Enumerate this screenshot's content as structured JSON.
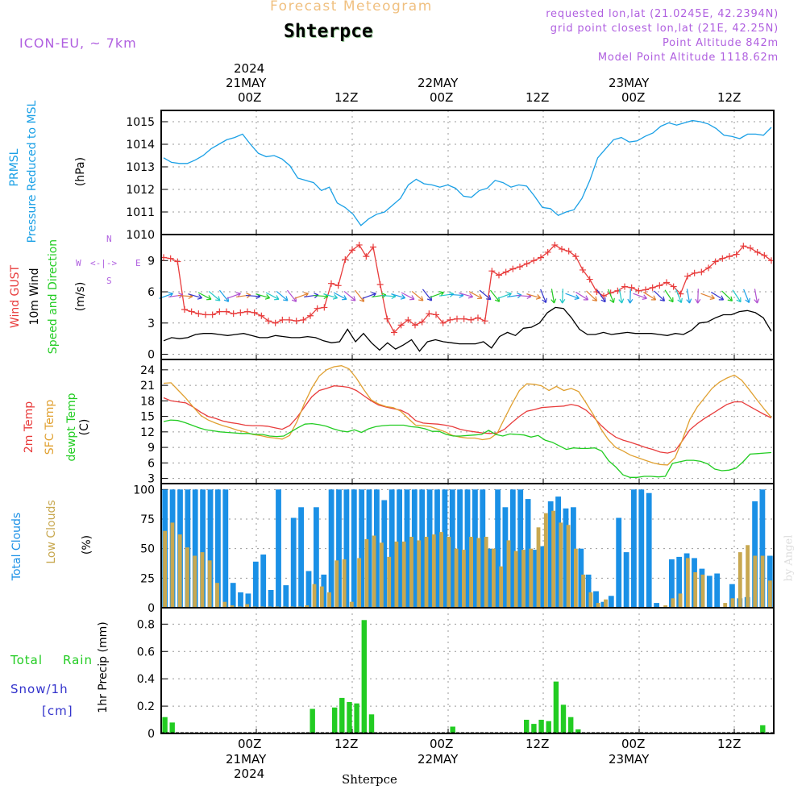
{
  "header": {
    "banner": "Forecast Meteogram",
    "location": "Shterpce",
    "model": "ICON-EU, ~ 7km",
    "requested": "requested lon,lat (21.0245E, 42.2394N)",
    "gridpoint": "grid point closest lon,lat (21E, 42.25N)",
    "point_alt": "Point Altitude 842m",
    "model_alt": "Model Point Altitude 1118.62m",
    "credit": "by Angel",
    "bottom_location": "Shterpce"
  },
  "time_axis": {
    "top_year": "2024",
    "top_days": [
      "21MAY",
      "22MAY",
      "23MAY"
    ],
    "hours": [
      "00Z",
      "12Z",
      "00Z",
      "12Z",
      "00Z",
      "12Z"
    ],
    "bottom_days": [
      "21MAY",
      "22MAY",
      "23MAY"
    ],
    "bottom_year": "2024"
  },
  "panels": {
    "pressure": {
      "label1": "PRMSL",
      "label2": "Pressure Reduced to MSL",
      "unit": "(hPa)"
    },
    "wind": {
      "label1": "Wind GUST",
      "label2": "10m Wind",
      "label3": "Speed and Direction",
      "unit": "(m/s)",
      "compass": "N",
      "compass_s": "S",
      "compass_w": "W",
      "compass_e": "E"
    },
    "temp": {
      "label1": "2m Temp",
      "label2": "SFC Temp",
      "label3": "dewpt Temp",
      "unit": "(C)"
    },
    "cloud": {
      "label1": "Total Clouds",
      "label2": "Low Clouds",
      "unit": "(%)"
    },
    "precip": {
      "label1": "Total",
      "label2": "Rain",
      "label3": "Snow/1h",
      "label4": "[cm]",
      "axis": "1hr Precip (mm)"
    }
  },
  "colors": {
    "pressure": "#1aa0e6",
    "gust": "#e83c3c",
    "wind": "#000000",
    "t2m": "#e83c3c",
    "tsfc": "#e0a030",
    "dewpt": "#22cc22",
    "total_clouds": "#1a90e6",
    "low_clouds": "#c8a850",
    "rain": "#22cc22",
    "snow": "#3333cc",
    "title_purple": "#b060e0",
    "banner": "#f0c080"
  },
  "chart_data": [
    {
      "type": "line",
      "panel": "pressure",
      "x_hours_from": "2024-05-20 18Z",
      "ylim": [
        1010,
        1015.5
      ],
      "yticks": [
        1010,
        1011,
        1012,
        1013,
        1014,
        1015
      ],
      "series": [
        {
          "name": "PRMSL",
          "values": [
            1013.4,
            1013.2,
            1013.15,
            1013.15,
            1013.3,
            1013.5,
            1013.8,
            1014.0,
            1014.2,
            1014.3,
            1014.45,
            1014.0,
            1013.6,
            1013.45,
            1013.5,
            1013.35,
            1013.05,
            1012.5,
            1012.4,
            1012.3,
            1011.95,
            1012.1,
            1011.4,
            1011.2,
            1010.9,
            1010.4,
            1010.7,
            1010.9,
            1011.0,
            1011.3,
            1011.6,
            1012.2,
            1012.45,
            1012.25,
            1012.2,
            1012.1,
            1012.2,
            1012.05,
            1011.7,
            1011.65,
            1011.95,
            1012.05,
            1012.4,
            1012.3,
            1012.1,
            1012.2,
            1012.15,
            1011.7,
            1011.2,
            1011.15,
            1010.85,
            1011.0,
            1011.1,
            1011.6,
            1012.4,
            1013.4,
            1013.8,
            1014.2,
            1014.3,
            1014.1,
            1014.15,
            1014.35,
            1014.5,
            1014.8,
            1014.95,
            1014.85,
            1014.95,
            1015.05,
            1015.0,
            1014.9,
            1014.7,
            1014.4,
            1014.35,
            1014.25,
            1014.45,
            1014.45,
            1014.4,
            1014.75
          ]
        }
      ]
    },
    {
      "type": "line",
      "panel": "wind",
      "ylim": [
        -0.5,
        11.5
      ],
      "yticks": [
        0,
        3,
        6,
        9
      ],
      "series": [
        {
          "name": "Wind GUST",
          "values": [
            9.3,
            9.2,
            8.9,
            4.3,
            4.1,
            3.9,
            3.8,
            3.8,
            4.1,
            4.1,
            3.9,
            4.0,
            4.1,
            4.0,
            3.7,
            3.2,
            3.0,
            3.3,
            3.3,
            3.2,
            3.3,
            3.7,
            4.4,
            4.5,
            6.8,
            6.6,
            9.1,
            10.0,
            10.5,
            9.4,
            10.3,
            6.7,
            3.4,
            2.1,
            2.8,
            3.3,
            2.8,
            3.1,
            3.9,
            3.8,
            3.0,
            3.3,
            3.4,
            3.4,
            3.3,
            3.5,
            3.2,
            8.0,
            7.6,
            7.9,
            8.2,
            8.4,
            8.7,
            9.0,
            9.3,
            9.8,
            10.5,
            10.1,
            9.9,
            9.4,
            8.1,
            7.2,
            6.0,
            5.6,
            5.9,
            6.1,
            6.5,
            6.4,
            6.1,
            6.2,
            6.4,
            6.6,
            6.9,
            6.5,
            5.8,
            7.5,
            7.8,
            7.9,
            8.3,
            8.9,
            9.2,
            9.4,
            9.6,
            10.4,
            10.2,
            9.8,
            9.5,
            9.0
          ]
        },
        {
          "name": "10m Wind",
          "values": [
            1.3,
            1.6,
            1.5,
            1.6,
            1.9,
            2.0,
            2.0,
            1.9,
            1.8,
            1.9,
            2.0,
            1.8,
            1.6,
            1.6,
            1.8,
            1.7,
            1.6,
            1.6,
            1.7,
            1.6,
            1.3,
            1.1,
            1.2,
            2.4,
            1.2,
            2.0,
            1.1,
            0.4,
            1.1,
            0.5,
            0.9,
            1.4,
            0.3,
            1.2,
            1.4,
            1.2,
            1.1,
            1.0,
            1.0,
            1.0,
            1.2,
            0.6,
            1.7,
            2.1,
            1.8,
            2.5,
            2.6,
            3.0,
            4.0,
            4.5,
            4.4,
            3.5,
            2.4,
            1.9,
            1.9,
            2.1,
            1.9,
            2.0,
            2.1,
            2.0,
            2.0,
            2.0,
            1.9,
            1.8,
            2.0,
            1.9,
            2.3,
            3.0,
            3.1,
            3.5,
            3.8,
            3.8,
            4.1,
            4.2,
            4.0,
            3.5,
            2.2
          ]
        }
      ]
    },
    {
      "type": "line",
      "panel": "temperature",
      "ylim": [
        2,
        26
      ],
      "yticks": [
        3,
        6,
        9,
        12,
        15,
        18,
        21,
        24
      ],
      "series": [
        {
          "name": "2m Temp",
          "values": [
            18.6,
            18.0,
            17.8,
            17.6,
            16.8,
            15.8,
            15.0,
            14.6,
            14.1,
            13.8,
            13.6,
            13.3,
            13.2,
            13.2,
            13.1,
            12.8,
            12.5,
            13.2,
            14.8,
            16.8,
            18.8,
            20.0,
            20.4,
            20.9,
            20.8,
            20.6,
            20.0,
            19.0,
            18.0,
            17.2,
            16.8,
            16.5,
            16.2,
            15.5,
            14.2,
            13.7,
            13.6,
            13.5,
            13.3,
            13.0,
            12.5,
            12.2,
            12.0,
            11.8,
            11.7,
            11.8,
            12.5,
            13.8,
            15.0,
            16.0,
            16.3,
            16.7,
            16.8,
            16.9,
            17.0,
            17.3,
            17.0,
            16.2,
            14.9,
            13.3,
            12.0,
            11.0,
            10.4,
            10.0,
            9.5,
            9.0,
            8.6,
            8.1,
            7.9,
            8.3,
            10.3,
            12.4,
            13.6,
            14.6,
            15.5,
            16.4,
            17.3,
            17.8,
            17.8,
            17.0,
            16.2,
            15.4,
            14.7
          ]
        },
        {
          "name": "SFC Temp",
          "values": [
            21.4,
            21.5,
            20.0,
            18.5,
            16.8,
            15.2,
            14.3,
            13.7,
            13.2,
            12.8,
            12.3,
            12.0,
            11.5,
            11.3,
            11.0,
            10.8,
            10.6,
            11.3,
            14.0,
            17.5,
            20.5,
            22.8,
            24.0,
            24.6,
            24.8,
            24.2,
            22.4,
            20.2,
            18.2,
            17.4,
            16.9,
            16.7,
            16.0,
            14.6,
            13.3,
            13.2,
            13.0,
            12.5,
            12.0,
            11.3,
            11.0,
            10.8,
            10.8,
            10.5,
            10.7,
            11.7,
            14.6,
            17.4,
            20.0,
            21.3,
            21.2,
            20.9,
            20.0,
            20.8,
            20.0,
            20.4,
            19.8,
            17.6,
            15.3,
            12.6,
            10.5,
            9.0,
            8.3,
            7.5,
            7.0,
            6.5,
            6.0,
            5.7,
            5.6,
            7.0,
            10.5,
            14.4,
            16.8,
            18.6,
            20.4,
            21.6,
            22.4,
            23.0,
            22.0,
            20.2,
            18.3,
            16.5,
            14.8
          ]
        },
        {
          "name": "dewpt Temp",
          "values": [
            14.0,
            14.3,
            14.2,
            13.8,
            13.3,
            12.8,
            12.4,
            12.2,
            12.0,
            11.9,
            11.8,
            11.7,
            11.7,
            11.5,
            11.5,
            11.2,
            11.1,
            11.2,
            12.0,
            12.8,
            13.5,
            13.6,
            13.4,
            13.1,
            12.6,
            12.2,
            12.0,
            12.4,
            11.9,
            12.6,
            13.0,
            13.2,
            13.3,
            13.3,
            13.3,
            13.0,
            12.9,
            12.6,
            12.1,
            12.1,
            11.5,
            11.2,
            11.2,
            11.3,
            11.4,
            11.5,
            12.3,
            11.5,
            11.2,
            11.6,
            11.5,
            11.4,
            11.0,
            11.3,
            10.4,
            10.0,
            9.3,
            8.6,
            8.9,
            8.8,
            8.8,
            8.9,
            8.3,
            6.4,
            5.2,
            3.7,
            3.2,
            3.2,
            3.4,
            3.4,
            3.3,
            3.4,
            5.9,
            6.2,
            6.5,
            6.5,
            6.3,
            5.8,
            4.8,
            4.5,
            4.6,
            5.0,
            6.2,
            7.7,
            7.8,
            7.9,
            8.0
          ]
        }
      ]
    },
    {
      "type": "bar",
      "panel": "clouds",
      "ylim": [
        0,
        105
      ],
      "yticks": [
        0,
        25,
        50,
        75,
        100
      ],
      "series": [
        {
          "name": "Total Clouds",
          "values": [
            100,
            100,
            100,
            100,
            100,
            100,
            100,
            100,
            100,
            21,
            13,
            12,
            39,
            45,
            15,
            100,
            19,
            76,
            85,
            31,
            85,
            28,
            100,
            100,
            100,
            100,
            100,
            100,
            100,
            91,
            100,
            100,
            100,
            100,
            100,
            100,
            100,
            100,
            100,
            100,
            100,
            100,
            100,
            50,
            100,
            85,
            100,
            100,
            92,
            49,
            52,
            90,
            94,
            84,
            85,
            50,
            28,
            14,
            5,
            10,
            76,
            47,
            100,
            100,
            97,
            4,
            0,
            41,
            43,
            46,
            42,
            33,
            27,
            29,
            0,
            20,
            8,
            9,
            90,
            100,
            44
          ]
        },
        {
          "name": "Low Clouds",
          "values": [
            65,
            72,
            62,
            51,
            44,
            47,
            40,
            21,
            5,
            2,
            1,
            3,
            1,
            1,
            1,
            1,
            1,
            1,
            1,
            2,
            20,
            18,
            13,
            40,
            41,
            5,
            42,
            58,
            61,
            55,
            43,
            56,
            56,
            60,
            57,
            60,
            62,
            64,
            60,
            50,
            49,
            60,
            59,
            60,
            50,
            35,
            57,
            48,
            49,
            50,
            68,
            80,
            82,
            72,
            70,
            50,
            28,
            13,
            4,
            7,
            0,
            0,
            0,
            0,
            0,
            0,
            0,
            2,
            8,
            12,
            42,
            30,
            28,
            0,
            0,
            4,
            8,
            47,
            53,
            44,
            44,
            23
          ]
        }
      ]
    },
    {
      "type": "bar",
      "panel": "precipitation",
      "ylim": [
        0,
        0.92
      ],
      "yticks": [
        0.0,
        0.2,
        0.4,
        0.6,
        0.8
      ],
      "series": [
        {
          "name": "Total Rain",
          "values": [
            0.12,
            0.08,
            0,
            0,
            0,
            0,
            0,
            0,
            0,
            0,
            0,
            0,
            0,
            0,
            0,
            0,
            0,
            0,
            0,
            0,
            0.18,
            0,
            0,
            0.19,
            0.26,
            0.23,
            0.22,
            0.83,
            0.14,
            0,
            0,
            0,
            0,
            0,
            0,
            0,
            0,
            0,
            0,
            0.05,
            0,
            0,
            0,
            0,
            0,
            0,
            0,
            0,
            0,
            0.1,
            0.07,
            0.1,
            0.09,
            0.38,
            0.21,
            0.12,
            0.03,
            0,
            0,
            0,
            0,
            0,
            0,
            0,
            0,
            0,
            0,
            0,
            0,
            0,
            0,
            0,
            0,
            0,
            0,
            0,
            0,
            0,
            0,
            0,
            0,
            0.06,
            0
          ]
        }
      ]
    }
  ]
}
